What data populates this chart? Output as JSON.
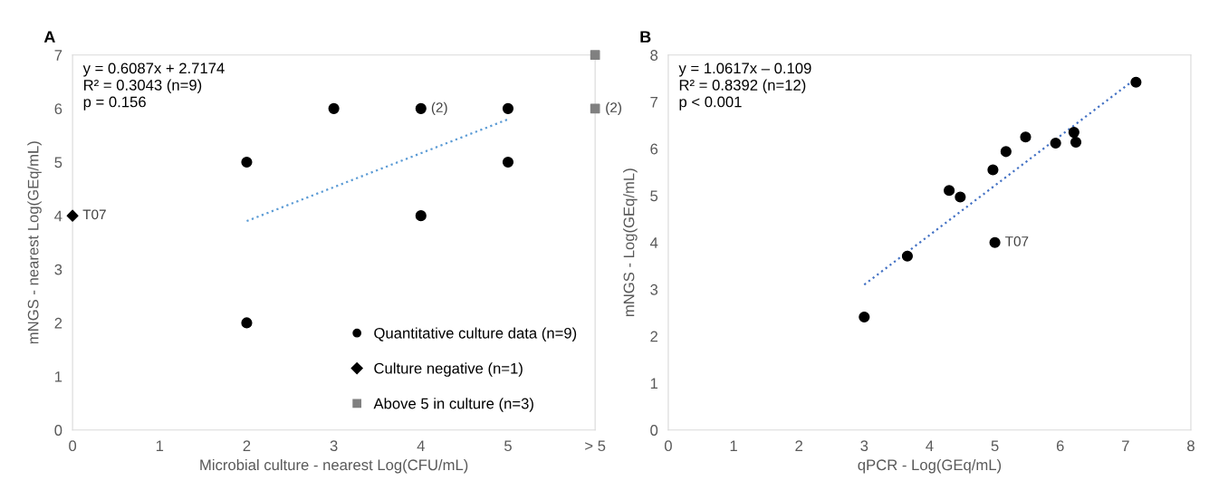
{
  "chart_data": [
    {
      "type": "scatter",
      "title": "A",
      "xlabel": "Microbial culture - nearest Log(CFU/mL)",
      "ylabel": "mNGS - nearest Log(GEq/mL)",
      "xlim": [
        0,
        6
      ],
      "ylim": [
        0,
        7
      ],
      "xticks": [
        0,
        1,
        2,
        3,
        4,
        5,
        {
          "value": 6,
          "label": "> 5"
        }
      ],
      "yticks": [
        0,
        1,
        2,
        3,
        4,
        5,
        6,
        7
      ],
      "grid": false,
      "legend": "bottom right",
      "series": [
        {
          "name": "Quantitative culture data (n=9)",
          "marker": "circle",
          "color": "#000000",
          "x": [
            2,
            2,
            3,
            4,
            4,
            5,
            5
          ],
          "values": [
            5,
            2,
            6,
            6,
            4,
            6,
            5
          ]
        },
        {
          "name": "Culture negative (n=1)",
          "marker": "diamond",
          "color": "#000000",
          "x": [
            0
          ],
          "values": [
            4
          ]
        },
        {
          "name": "Above 5 in culture (n=3)",
          "marker": "square",
          "color": "#808080",
          "x": [
            6,
            6
          ],
          "values": [
            7,
            6
          ]
        },
        {
          "type": "line",
          "line_style": "dotted",
          "marker": "none",
          "color": "#5b9bd5",
          "x": [
            2,
            5
          ],
          "values": [
            3.9,
            5.8
          ]
        }
      ],
      "annotations": [
        "y = 0.6087x + 2.7174\nR² = 0.3043 (n=9)\np = 0.156",
        {
          "text": "(2)",
          "x": 4,
          "y": 6
        },
        {
          "text": "(2)",
          "x": 6,
          "y": 6
        },
        {
          "text": "T07",
          "x": 0,
          "y": 4
        }
      ]
    },
    {
      "type": "scatter",
      "title": "B",
      "xlabel": "qPCR - Log(GEq/mL)",
      "ylabel": "mNGS - Log(GEq/mL)",
      "xlim": [
        0,
        8
      ],
      "ylim": [
        0,
        8
      ],
      "xticks": [
        0,
        1,
        2,
        3,
        4,
        5,
        6,
        7,
        8
      ],
      "yticks": [
        0,
        1,
        2,
        3,
        4,
        5,
        6,
        7,
        8
      ],
      "grid": false,
      "series": [
        {
          "marker": "circle",
          "color": "#000000",
          "x": [
            3.0,
            3.66,
            4.3,
            4.47,
            4.97,
            5.17,
            5.47,
            5.93,
            6.21,
            6.24,
            7.16,
            5.0
          ],
          "values": [
            2.41,
            3.71,
            5.11,
            4.97,
            5.55,
            5.94,
            6.25,
            6.12,
            6.35,
            6.14,
            7.42,
            4.0
          ]
        },
        {
          "type": "line",
          "line_style": "dotted",
          "marker": "none",
          "color": "#4472c4",
          "x": [
            3.0,
            7.16
          ],
          "values": [
            3.1,
            7.5
          ]
        }
      ],
      "annotations": [
        "y = 1.0617x – 0.109\nR² = 0.8392 (n=12)\np < 0.001",
        {
          "text": "T07",
          "x": 5.0,
          "y": 4.0
        }
      ]
    }
  ]
}
